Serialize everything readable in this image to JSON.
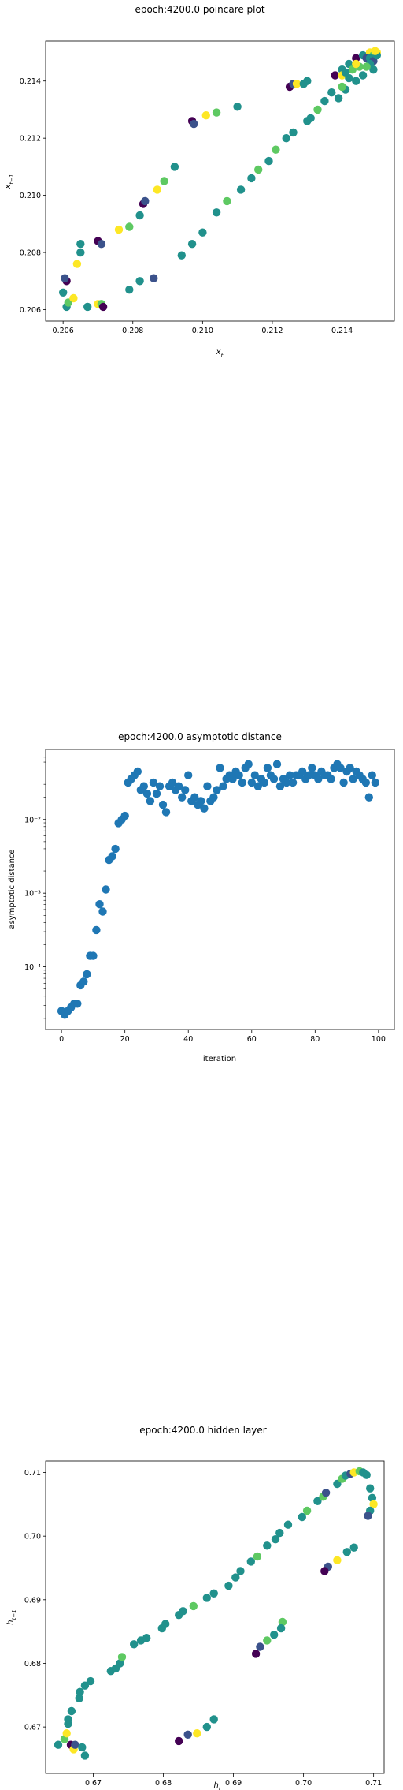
{
  "chart_data": [
    {
      "type": "scatter",
      "title": "epoch:4200.0 poincare plot",
      "xlabel": "x_t",
      "ylabel": "x_{t-1}",
      "xlim": [
        0.2055,
        0.2155
      ],
      "ylim": [
        0.2056,
        0.2154
      ],
      "xticks": [
        "0.206",
        "0.208",
        "0.210",
        "0.212",
        "0.214"
      ],
      "yticks": [
        "0.206",
        "0.208",
        "0.210",
        "0.212",
        "0.214"
      ],
      "xtick_values": [
        0.206,
        0.208,
        0.21,
        0.212,
        0.214
      ],
      "ytick_values": [
        0.206,
        0.208,
        0.21,
        0.212,
        0.214
      ],
      "colormap": [
        "#440154",
        "#3b528b",
        "#21918c",
        "#5ec962",
        "#fde725"
      ],
      "points": [
        [
          0.2061,
          0.2061,
          0.4
        ],
        [
          0.20615,
          0.20625,
          0.8
        ],
        [
          0.2063,
          0.2064,
          0.9
        ],
        [
          0.206,
          0.2066,
          0.5
        ],
        [
          0.2061,
          0.207,
          0.0
        ],
        [
          0.20605,
          0.2071,
          0.2
        ],
        [
          0.2064,
          0.2076,
          0.9
        ],
        [
          0.2065,
          0.208,
          0.6
        ],
        [
          0.2065,
          0.2083,
          0.5
        ],
        [
          0.2067,
          0.2061,
          0.5
        ],
        [
          0.207,
          0.2062,
          0.9
        ],
        [
          0.2071,
          0.2062,
          0.8
        ],
        [
          0.20715,
          0.2061,
          0.0
        ],
        [
          0.207,
          0.2084,
          0.1
        ],
        [
          0.2071,
          0.2083,
          0.2
        ],
        [
          0.2076,
          0.2088,
          0.9
        ],
        [
          0.2079,
          0.2089,
          0.7
        ],
        [
          0.2079,
          0.2067,
          0.6
        ],
        [
          0.2082,
          0.207,
          0.6
        ],
        [
          0.2082,
          0.2093,
          0.5
        ],
        [
          0.2083,
          0.2097,
          0.1
        ],
        [
          0.20835,
          0.2098,
          0.2
        ],
        [
          0.2086,
          0.2071,
          0.3
        ],
        [
          0.2087,
          0.2102,
          0.9
        ],
        [
          0.2089,
          0.2105,
          0.7
        ],
        [
          0.2092,
          0.211,
          0.6
        ],
        [
          0.2094,
          0.2079,
          0.5
        ],
        [
          0.2097,
          0.2083,
          0.4
        ],
        [
          0.2097,
          0.2126,
          0.1
        ],
        [
          0.20975,
          0.2125,
          0.2
        ],
        [
          0.21,
          0.2087,
          0.4
        ],
        [
          0.2101,
          0.2128,
          0.9
        ],
        [
          0.2104,
          0.2094,
          0.6
        ],
        [
          0.2104,
          0.2129,
          0.7
        ],
        [
          0.2107,
          0.2098,
          0.7
        ],
        [
          0.211,
          0.2131,
          0.6
        ],
        [
          0.2111,
          0.2102,
          0.4
        ],
        [
          0.2114,
          0.2106,
          0.6
        ],
        [
          0.2116,
          0.2109,
          0.7
        ],
        [
          0.2119,
          0.2112,
          0.4
        ],
        [
          0.2121,
          0.2116,
          0.7
        ],
        [
          0.2124,
          0.212,
          0.5
        ],
        [
          0.2125,
          0.2138,
          0.1
        ],
        [
          0.2126,
          0.2139,
          0.3
        ],
        [
          0.2127,
          0.2139,
          0.9
        ],
        [
          0.2129,
          0.2139,
          0.5
        ],
        [
          0.213,
          0.214,
          0.4
        ],
        [
          0.2126,
          0.2122,
          0.5
        ],
        [
          0.213,
          0.2126,
          0.4
        ],
        [
          0.2131,
          0.2127,
          0.5
        ],
        [
          0.2133,
          0.213,
          0.8
        ],
        [
          0.2135,
          0.2133,
          0.4
        ],
        [
          0.2137,
          0.2136,
          0.5
        ],
        [
          0.2138,
          0.2142,
          0.1
        ],
        [
          0.214,
          0.2144,
          0.6
        ],
        [
          0.214,
          0.2142,
          0.9
        ],
        [
          0.2142,
          0.2146,
          0.5
        ],
        [
          0.2144,
          0.2148,
          0.0
        ],
        [
          0.2146,
          0.2149,
          0.4
        ],
        [
          0.2148,
          0.215,
          0.9
        ],
        [
          0.215,
          0.215,
          0.9
        ],
        [
          0.2149,
          0.2149,
          0.8
        ],
        [
          0.2145,
          0.2145,
          0.7
        ],
        [
          0.2143,
          0.2144,
          0.8
        ],
        [
          0.2147,
          0.2148,
          0.3
        ],
        [
          0.2148,
          0.2148,
          0.5
        ],
        [
          0.2149,
          0.2147,
          0.3
        ],
        [
          0.2148,
          0.2146,
          0.5
        ],
        [
          0.2149,
          0.2144,
          0.6
        ],
        [
          0.2146,
          0.2142,
          0.6
        ],
        [
          0.2144,
          0.214,
          0.6
        ],
        [
          0.2141,
          0.2137,
          0.5
        ],
        [
          0.2139,
          0.2134,
          0.4
        ],
        [
          0.214,
          0.2138,
          0.8
        ],
        [
          0.2142,
          0.2141,
          0.4
        ],
        [
          0.215,
          0.2149,
          0.6
        ],
        [
          0.21495,
          0.21505,
          0.9
        ],
        [
          0.2147,
          0.2145,
          0.7
        ],
        [
          0.2144,
          0.2146,
          0.9
        ],
        [
          0.2141,
          0.2143,
          0.6
        ]
      ]
    },
    {
      "type": "scatter",
      "title": "epoch:4200.0 asymptotic distance",
      "xlabel": "iteration",
      "ylabel": "asymptotic distance",
      "yscale": "log",
      "xlim": [
        -5,
        105
      ],
      "ylim_log10": [
        -4.85,
        -1.05
      ],
      "xticks": [
        "0",
        "20",
        "40",
        "60",
        "80",
        "100"
      ],
      "xtick_values": [
        0,
        20,
        40,
        60,
        80,
        100
      ],
      "yticks": [
        "10⁻⁴",
        "10⁻³",
        "10⁻²"
      ],
      "ytick_exponents": [
        -4,
        -3,
        -2
      ],
      "color": "#1f77b4",
      "x": [
        0,
        1,
        2,
        3,
        4,
        5,
        6,
        7,
        8,
        9,
        10,
        11,
        12,
        13,
        14,
        15,
        16,
        17,
        18,
        19,
        20,
        21,
        22,
        23,
        24,
        25,
        26,
        27,
        28,
        29,
        30,
        31,
        32,
        33,
        34,
        35,
        36,
        37,
        38,
        39,
        40,
        41,
        42,
        43,
        44,
        45,
        46,
        47,
        48,
        49,
        50,
        51,
        52,
        53,
        54,
        55,
        56,
        57,
        58,
        59,
        60,
        61,
        62,
        63,
        64,
        65,
        66,
        67,
        68,
        69,
        70,
        71,
        72,
        73,
        74,
        75,
        76,
        77,
        78,
        79,
        80,
        81,
        82,
        83,
        84,
        85,
        86,
        87,
        88,
        89,
        90,
        91,
        92,
        93,
        94,
        95,
        96,
        97,
        98,
        99
      ],
      "y_log10": [
        -4.6,
        -4.65,
        -4.6,
        -4.55,
        -4.5,
        -4.5,
        -4.25,
        -4.2,
        -4.1,
        -3.85,
        -3.85,
        -3.5,
        -3.15,
        -3.25,
        -2.95,
        -2.55,
        -2.5,
        -2.4,
        -2.05,
        -2.0,
        -1.95,
        -1.5,
        -1.45,
        -1.4,
        -1.35,
        -1.6,
        -1.55,
        -1.65,
        -1.75,
        -1.5,
        -1.65,
        -1.55,
        -1.8,
        -1.9,
        -1.55,
        -1.5,
        -1.6,
        -1.55,
        -1.7,
        -1.6,
        -1.4,
        -1.75,
        -1.7,
        -1.8,
        -1.75,
        -1.85,
        -1.55,
        -1.75,
        -1.7,
        -1.6,
        -1.3,
        -1.55,
        -1.45,
        -1.4,
        -1.45,
        -1.35,
        -1.4,
        -1.5,
        -1.3,
        -1.25,
        -1.5,
        -1.4,
        -1.55,
        -1.45,
        -1.5,
        -1.3,
        -1.4,
        -1.45,
        -1.25,
        -1.55,
        -1.45,
        -1.5,
        -1.4,
        -1.5,
        -1.4,
        -1.4,
        -1.35,
        -1.45,
        -1.4,
        -1.3,
        -1.4,
        -1.45,
        -1.35,
        -1.4,
        -1.4,
        -1.45,
        -1.3,
        -1.25,
        -1.3,
        -1.5,
        -1.35,
        -1.3,
        -1.45,
        -1.35,
        -1.4,
        -1.45,
        -1.5,
        -1.7,
        -1.4,
        -1.5
      ]
    },
    {
      "type": "scatter",
      "title": "epoch:4200.0 hidden layer",
      "xlabel": "h_t",
      "ylabel": "h_{t-1}",
      "xlim": [
        0.6632,
        0.7115
      ],
      "ylim": [
        0.6627,
        0.7118
      ],
      "xticks": [
        "0.67",
        "0.68",
        "0.69",
        "0.70",
        "0.71"
      ],
      "yticks": [
        "0.67",
        "0.68",
        "0.69",
        "0.70",
        "0.71"
      ],
      "xtick_values": [
        0.67,
        0.68,
        0.69,
        0.7,
        0.71
      ],
      "ytick_values": [
        0.67,
        0.68,
        0.69,
        0.7,
        0.71
      ],
      "colormap": [
        "#440154",
        "#3b528b",
        "#21918c",
        "#5ec962",
        "#fde725"
      ],
      "points": [
        [
          0.665,
          0.6672,
          0.5
        ],
        [
          0.6659,
          0.6681,
          0.8
        ],
        [
          0.6662,
          0.669,
          0.9
        ],
        [
          0.6664,
          0.6705,
          0.5
        ],
        [
          0.6664,
          0.6712,
          0.4
        ],
        [
          0.6669,
          0.6725,
          0.6
        ],
        [
          0.6668,
          0.6672,
          0.1
        ],
        [
          0.6672,
          0.6665,
          0.9
        ],
        [
          0.6674,
          0.6672,
          0.3
        ],
        [
          0.6684,
          0.6668,
          0.6
        ],
        [
          0.6688,
          0.6655,
          0.5
        ],
        [
          0.668,
          0.6745,
          0.4
        ],
        [
          0.6681,
          0.6755,
          0.4
        ],
        [
          0.6688,
          0.6765,
          0.5
        ],
        [
          0.6696,
          0.6772,
          0.6
        ],
        [
          0.6725,
          0.6788,
          0.4
        ],
        [
          0.6732,
          0.6792,
          0.6
        ],
        [
          0.6738,
          0.68,
          0.5
        ],
        [
          0.6741,
          0.681,
          0.7
        ],
        [
          0.6758,
          0.683,
          0.4
        ],
        [
          0.6768,
          0.6836,
          0.5
        ],
        [
          0.6776,
          0.684,
          0.6
        ],
        [
          0.6798,
          0.6855,
          0.4
        ],
        [
          0.6803,
          0.6862,
          0.6
        ],
        [
          0.6822,
          0.6876,
          0.4
        ],
        [
          0.6828,
          0.6882,
          0.5
        ],
        [
          0.6843,
          0.689,
          0.7
        ],
        [
          0.6862,
          0.6903,
          0.4
        ],
        [
          0.6872,
          0.691,
          0.6
        ],
        [
          0.6893,
          0.6922,
          0.5
        ],
        [
          0.6903,
          0.6935,
          0.5
        ],
        [
          0.691,
          0.6945,
          0.6
        ],
        [
          0.6925,
          0.696,
          0.5
        ],
        [
          0.6934,
          0.6968,
          0.7
        ],
        [
          0.6948,
          0.6985,
          0.5
        ],
        [
          0.696,
          0.6995,
          0.6
        ],
        [
          0.6966,
          0.7005,
          0.5
        ],
        [
          0.6978,
          0.7018,
          0.6
        ],
        [
          0.6998,
          0.703,
          0.5
        ],
        [
          0.7005,
          0.704,
          0.7
        ],
        [
          0.702,
          0.7055,
          0.5
        ],
        [
          0.7028,
          0.7062,
          0.8
        ],
        [
          0.7032,
          0.7068,
          0.2
        ],
        [
          0.7048,
          0.7082,
          0.5
        ],
        [
          0.7055,
          0.709,
          0.7
        ],
        [
          0.706,
          0.7095,
          0.4
        ],
        [
          0.7067,
          0.7098,
          0.3
        ],
        [
          0.7072,
          0.71,
          0.9
        ],
        [
          0.708,
          0.7102,
          0.8
        ],
        [
          0.7085,
          0.71,
          0.6
        ],
        [
          0.709,
          0.7096,
          0.4
        ],
        [
          0.7095,
          0.7075,
          0.6
        ],
        [
          0.7098,
          0.706,
          0.6
        ],
        [
          0.71,
          0.705,
          0.9
        ],
        [
          0.7095,
          0.704,
          0.4
        ],
        [
          0.7092,
          0.7032,
          0.2
        ],
        [
          0.697,
          0.6865,
          0.7
        ],
        [
          0.6968,
          0.6855,
          0.5
        ],
        [
          0.6958,
          0.6845,
          0.4
        ],
        [
          0.6948,
          0.6836,
          0.8
        ],
        [
          0.6938,
          0.6826,
          0.3
        ],
        [
          0.6932,
          0.6815,
          0.0
        ],
        [
          0.7072,
          0.6982,
          0.5
        ],
        [
          0.7062,
          0.6975,
          0.6
        ],
        [
          0.7048,
          0.6962,
          0.9
        ],
        [
          0.7035,
          0.6952,
          0.3
        ],
        [
          0.703,
          0.6945,
          0.1
        ],
        [
          0.6822,
          0.6678,
          0.1
        ],
        [
          0.6835,
          0.6688,
          0.3
        ],
        [
          0.6848,
          0.669,
          0.9
        ],
        [
          0.6862,
          0.67,
          0.5
        ],
        [
          0.6872,
          0.6712,
          0.5
        ]
      ]
    }
  ]
}
